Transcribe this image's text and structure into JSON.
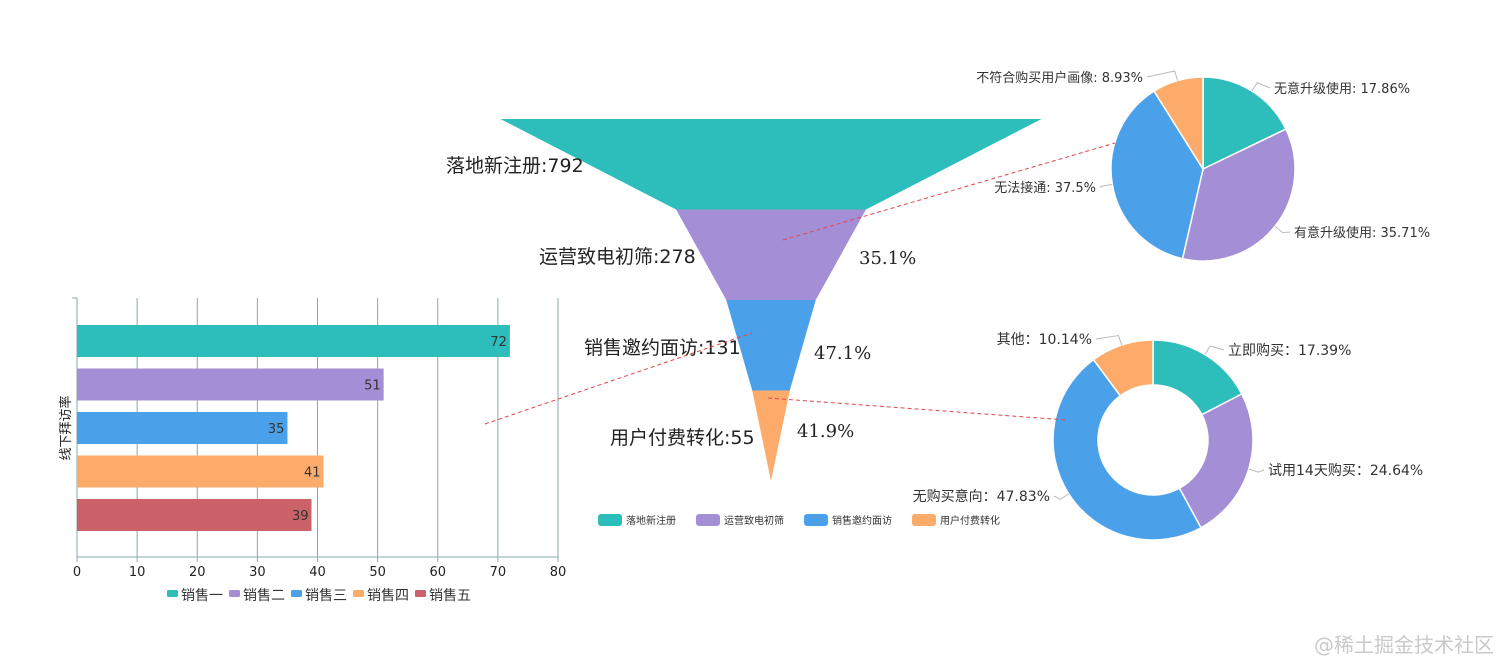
{
  "colors": {
    "teal": "#2dbdbb",
    "purple": "#a48fd6",
    "blue": "#4ba1e9",
    "orange": "#fdab6b",
    "red": "#cb6169",
    "grid": "#8aa9a9",
    "dashed": "#e0454a"
  },
  "watermark": "@稀土掘金技术社区",
  "chart_data": [
    {
      "type": "bar",
      "orientation": "horizontal",
      "title": "",
      "ylabel": "线下拜访率",
      "xlabel": "",
      "xlim": [
        0,
        80
      ],
      "xticks": [
        0,
        10,
        20,
        30,
        40,
        50,
        60,
        70,
        80
      ],
      "grid": true,
      "legend_position": "bottom",
      "series": [
        {
          "name": "销售一",
          "value": 72,
          "color": "#2dbdbb"
        },
        {
          "name": "销售二",
          "value": 51,
          "color": "#a48fd6"
        },
        {
          "name": "销售三",
          "value": 35,
          "color": "#4ba1e9"
        },
        {
          "name": "销售四",
          "value": 41,
          "color": "#fdab6b"
        },
        {
          "name": "销售五",
          "value": 39,
          "color": "#cb6169"
        }
      ]
    },
    {
      "type": "funnel",
      "title": "",
      "legend_position": "bottom",
      "stages": [
        {
          "name": "落地新注册",
          "value": 792,
          "label": "落地新注册:792",
          "rate": "",
          "color": "#2dbdbb"
        },
        {
          "name": "运营致电初筛",
          "value": 278,
          "label": "运营致电初筛:278",
          "rate": "35.1%",
          "color": "#a48fd6"
        },
        {
          "name": "销售邀约面访",
          "value": 131,
          "label": "销售邀约面访:131",
          "rate": "47.1%",
          "color": "#4ba1e9"
        },
        {
          "name": "用户付费转化",
          "value": 55,
          "label": "用户付费转化:55",
          "rate": "41.9%",
          "color": "#fdab6b"
        }
      ]
    },
    {
      "type": "pie",
      "title": "",
      "slices": [
        {
          "name": "无意升级使用",
          "value": 17.86,
          "label": "无意升级使用: 17.86%",
          "color": "#2dbdbb"
        },
        {
          "name": "有意升级使用",
          "value": 35.71,
          "label": "有意升级使用: 35.71%",
          "color": "#a48fd6"
        },
        {
          "name": "无法接通",
          "value": 37.5,
          "label": "无法接通: 37.5%",
          "color": "#4ba1e9"
        },
        {
          "name": "不符合购买用户画像",
          "value": 8.93,
          "label": "不符合购买用户画像: 8.93%",
          "color": "#fdab6b"
        }
      ]
    },
    {
      "type": "donut",
      "title": "",
      "slices": [
        {
          "name": "立即购买",
          "value": 17.39,
          "label": "立即购买：17.39%",
          "color": "#2dbdbb"
        },
        {
          "name": "试用14天购买",
          "value": 24.64,
          "label": "试用14天购买：24.64%",
          "color": "#a48fd6"
        },
        {
          "name": "无购买意向",
          "value": 47.83,
          "label": "无购买意向：47.83%",
          "color": "#4ba1e9"
        },
        {
          "name": "其他",
          "value": 10.14,
          "label": "其他：10.14%",
          "color": "#fdab6b"
        }
      ]
    }
  ]
}
